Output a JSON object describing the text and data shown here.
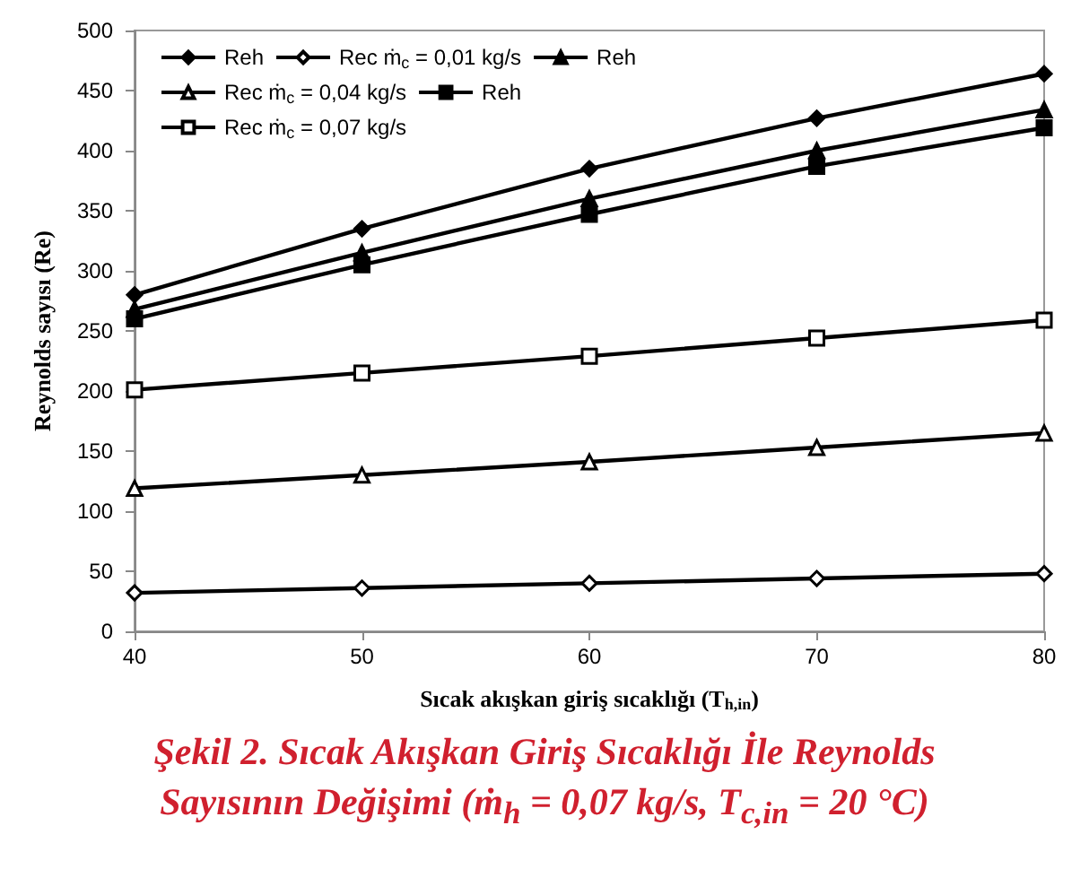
{
  "chart_data": {
    "type": "line",
    "title": "Şekil 2. Sıcak Akışkan Giriş Sıcaklığı İle Reynolds Sayısının Değişimi (ṁ$_{h}$ = 0,07 kg/s, T$_{c,in}$ = 20 °C)",
    "xlabel": "Sıcak akışkan giriş sıcaklığı (T$_{h,in}$)",
    "ylabel": "Reynolds sayısı (Re)",
    "x": [
      40,
      50,
      60,
      70,
      80
    ],
    "xlim": [
      40,
      80
    ],
    "xticks": [
      40,
      50,
      60,
      70,
      80
    ],
    "ylim": [
      0,
      500
    ],
    "yticks": [
      0,
      50,
      100,
      150,
      200,
      250,
      300,
      350,
      400,
      450,
      500
    ],
    "grid": false,
    "legend": "top left",
    "series": [
      {
        "name": "Reh",
        "color": "#000000",
        "marker": "diamond",
        "values": [
          280,
          335,
          385,
          427,
          464
        ]
      },
      {
        "name": "Rec ṁ$_{c}$ = 0,01 kg/s",
        "color": "#000000",
        "marker": "diamond",
        "colors": [
          "#ffffff",
          "#ffffff",
          "#ffffff",
          "#ffffff",
          "#ffffff"
        ],
        "values": [
          32,
          36,
          40,
          44,
          48
        ]
      },
      {
        "name": "Reh",
        "color": "#000000",
        "marker": "triangle",
        "values": [
          268,
          315,
          360,
          400,
          434
        ]
      },
      {
        "name": "Rec ṁ$_{c}$ = 0,04 kg/s",
        "color": "#000000",
        "marker": "triangle",
        "colors": [
          "#ffffff",
          "#ffffff",
          "#ffffff",
          "#ffffff",
          "#ffffff"
        ],
        "values": [
          119,
          130,
          141,
          153,
          165
        ]
      },
      {
        "name": "Reh",
        "color": "#000000",
        "marker": "square",
        "values": [
          260,
          305,
          347,
          387,
          419
        ]
      },
      {
        "name": "Rec ṁ$_{c}$ = 0,07 kg/s",
        "color": "#000000",
        "marker": "square",
        "colors": [
          "#ffffff",
          "#ffffff",
          "#ffffff",
          "#ffffff",
          "#ffffff"
        ],
        "values": [
          201,
          215,
          229,
          244,
          259
        ]
      }
    ]
  }
}
